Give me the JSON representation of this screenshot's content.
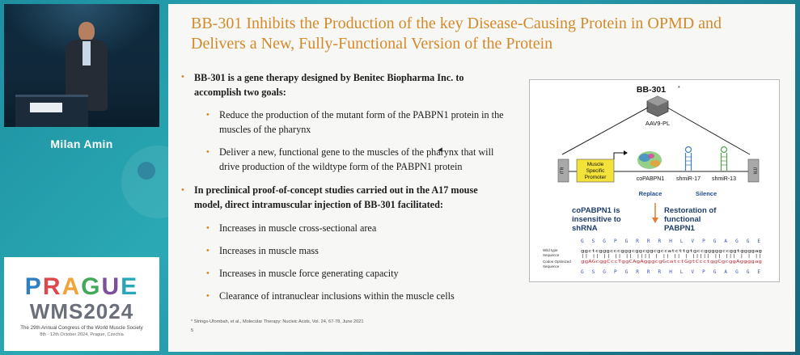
{
  "speaker": {
    "name": "Milan Amin"
  },
  "conference": {
    "logo_prague": "PRAGUE",
    "logo_wms": "WMS2024",
    "subtitle": "The 29th Annual Congress of the World Muscle Society",
    "dates": "8th - 12th October 2024, Prague, Czechia",
    "colors": {
      "p": "#2f7fc4",
      "r": "#e0474c",
      "a": "#f2a33a",
      "g": "#44a85a",
      "u": "#7d4f9b",
      "e": "#27a7b8"
    }
  },
  "slide": {
    "title_line1": "BB-301 Inhibits the Production of the key Disease-Causing Protein in OPMD and",
    "title_line2": "Delivers a New, Fully-Functional Version of the Protein",
    "bullet1_line1": "BB-301 is a gene therapy designed by Benitec Biopharma Inc. to",
    "bullet1_line2": "accomplish two goals:",
    "sub1a_line1": "Reduce the production of the mutant form of the PABPN1 protein in the",
    "sub1a_line2": "muscles of the pharynx",
    "sub1b_line1": "Deliver a new, functional gene to the muscles of the pharynx that will",
    "sub1b_line2": "drive production of the wildtype form of the PABPN1 protein",
    "bullet2_line1": "In preclinical proof-of-concept studies carried out in the A17 mouse",
    "bullet2_line2": "model, direct intramuscular injection of BB-301 facilitated:",
    "sub2": [
      "Increases in muscle cross-sectional area",
      "Increases in muscle mass",
      "Increases in muscle force generating capacity",
      "Clearance of intranuclear inclusions within the muscle cells"
    ],
    "footnote": "* Strings-Ufombah, et al., Molecular Therapy: Nucleic Acids, Vol. 24, 67-78, June 2021",
    "page_number": "5",
    "accent_color": "#d48a2a"
  },
  "figure": {
    "title": "BB-301",
    "title_mark": "*",
    "vector_label": "AAV9-PL",
    "itr_label": "ITR",
    "promoter_line1": "Muscle",
    "promoter_line2": "Specific",
    "promoter_line3": "Promoter",
    "gene1": "coPABPN1",
    "gene2": "shmiR-17",
    "gene3": "shmiR-13",
    "replace_label": "Replace",
    "silence_label": "Silence",
    "left_caption_line1": "coPABPN1 is",
    "left_caption_line2": "insensitive to",
    "left_caption_line3": "shRNA",
    "right_caption_line1": "Restoration of",
    "right_caption_line2": "functional",
    "right_caption_line3": "PABPN1",
    "aa_top": "G S G P G R R R H L V P G A G G E",
    "seq_label_wt_1": "Wild type",
    "seq_label_wt_2": "Sequence",
    "seq_wt": "ggctcgggcccgggcggcggcgccatcttgtgccgggggccggtggggag",
    "seq_match": "|| || || || || |||| | || || | ||||| || ||| | | ||",
    "seq_label_co_1": "Codon Optimized",
    "seq_label_co_2": "Sequence",
    "seq_co": "ggAGcggCccTggCAgAgggcgGcatctGgtCcctggCgcggAggggag",
    "aa_bottom": "G S G P G R R R H L V P G A G G E"
  }
}
